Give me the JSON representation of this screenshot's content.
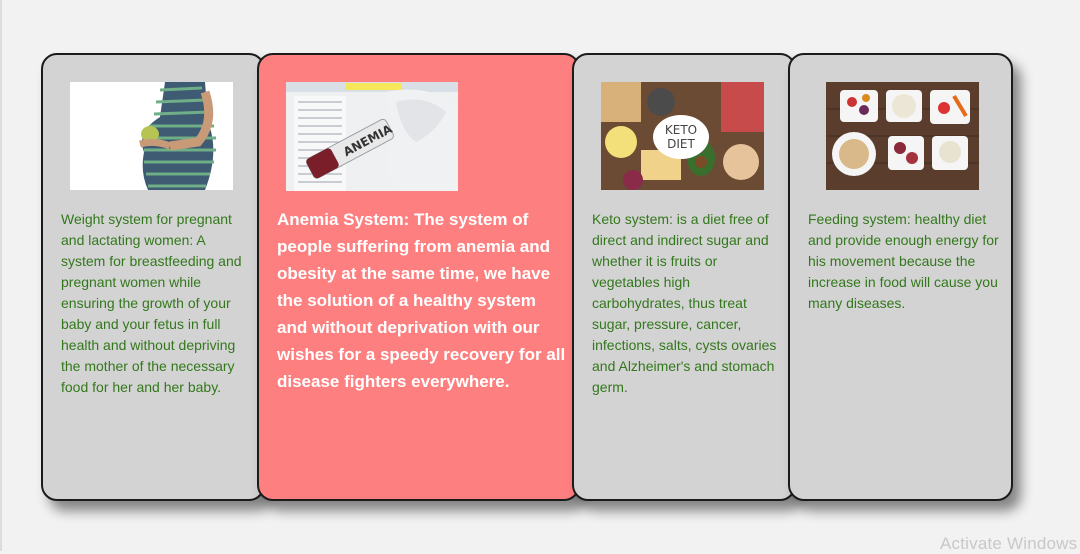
{
  "cards": [
    {
      "title": "Weight system",
      "image": "pregnant-woman-image",
      "text": "Weight system for pregnant and lactating women: A system for breastfeeding and pregnant women while ensuring the growth of your baby and your fetus in full health and without depriving the mother of the necessary food for her and her baby."
    },
    {
      "title": "Anemia System",
      "image": "anemia-blood-test-image",
      "image_label": "ANEMIA",
      "text": "Anemia System: The system of people suffering from anemia and obesity at the same time, we have the solution of a healthy system and without deprivation with our wishes for a speedy recovery for all disease fighters everywhere."
    },
    {
      "title": "Keto system",
      "image": "keto-diet-food-image",
      "image_label_1": "KETO",
      "image_label_2": "DIET",
      "text": "Keto system: is a diet free of direct and indirect sugar and whether it is fruits or vegetables high carbohydrates, thus treat sugar, pressure, cancer, infections, salts, cysts ovaries and Alzheimer's and stomach germ."
    },
    {
      "title": "Feeding system",
      "image": "healthy-food-bowls-image",
      "text": "Feeding system: healthy diet and provide enough energy for his movement because the increase in food will cause you many diseases."
    }
  ],
  "colors": {
    "card_bg": "#d3d3d3",
    "highlight_bg": "#fe7f7f",
    "text_green": "#33781c",
    "text_white": "#ffffff"
  },
  "watermark": "Activate Windows"
}
